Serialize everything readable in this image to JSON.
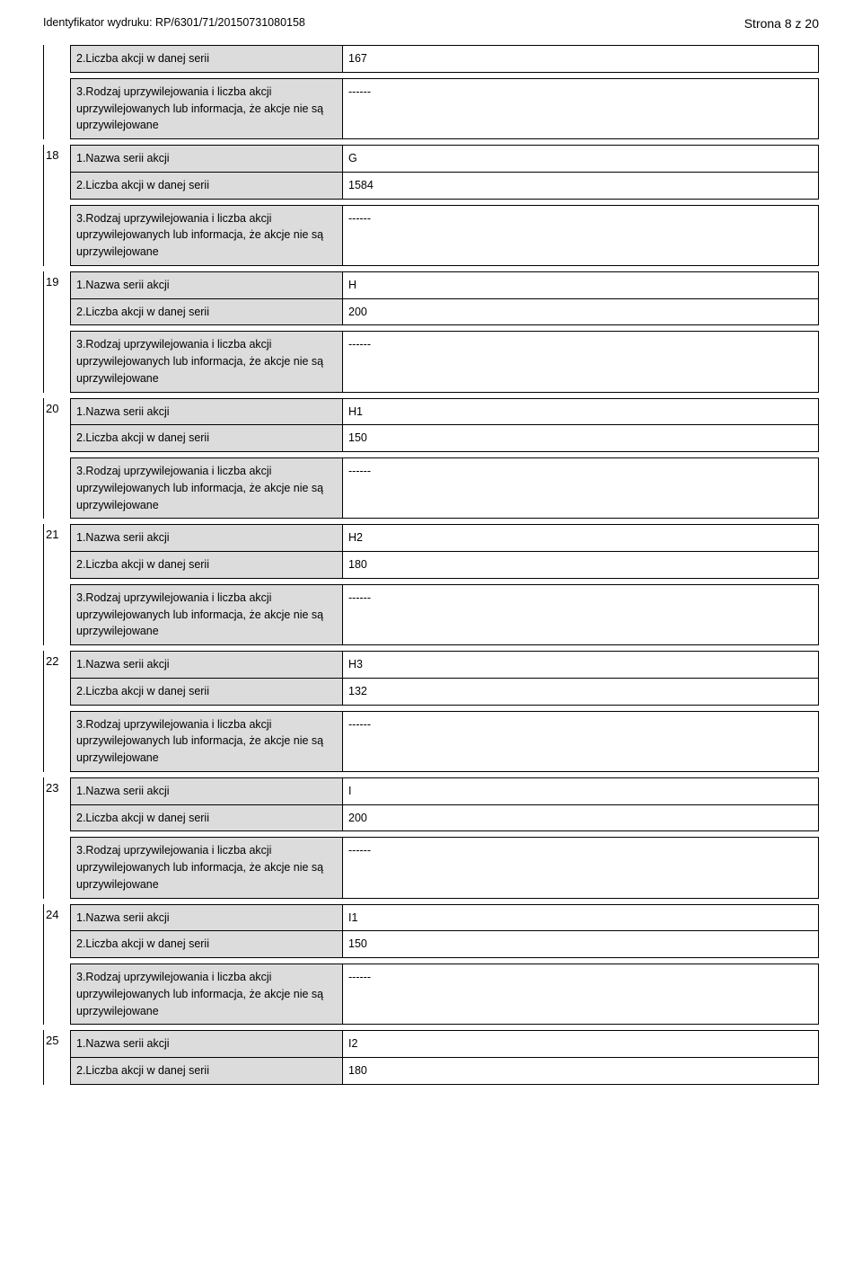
{
  "header": {
    "left": "Identyfikator wydruku: RP/6301/71/20150731080158",
    "right": "Strona 8 z 20"
  },
  "labels": {
    "nazwa": "1.Nazwa serii akcji",
    "liczba": "2.Liczba akcji w danej serii",
    "rodzaj": "3.Rodzaj uprzywilejowania i liczba akcji uprzywilejowanych lub informacja, że akcje nie są uprzywilejowane",
    "dashes": "------"
  },
  "continuation": {
    "liczba": "167"
  },
  "groups": [
    {
      "num": "18",
      "nazwa": "G",
      "liczba": "1584"
    },
    {
      "num": "19",
      "nazwa": "H",
      "liczba": "200"
    },
    {
      "num": "20",
      "nazwa": "H1",
      "liczba": "150"
    },
    {
      "num": "21",
      "nazwa": "H2",
      "liczba": "180"
    },
    {
      "num": "22",
      "nazwa": "H3",
      "liczba": "132"
    },
    {
      "num": "23",
      "nazwa": "I",
      "liczba": "200"
    },
    {
      "num": "24",
      "nazwa": "I1",
      "liczba": "150"
    }
  ],
  "lastGroup": {
    "num": "25",
    "nazwa": "I2",
    "liczba": "180"
  }
}
